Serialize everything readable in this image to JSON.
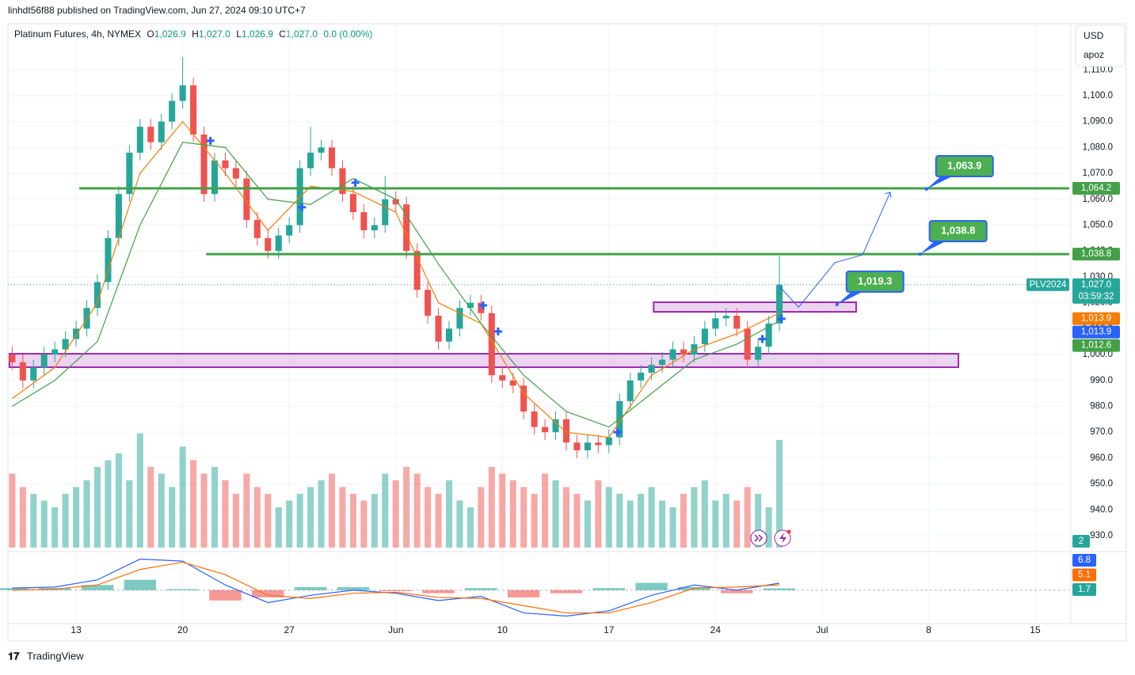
{
  "chart_data": {
    "type": "candlestick",
    "header": "linhdt56f88 published on TradingView.com, Jun 27, 2024 09:10 UTC+7",
    "legend": {
      "symbol": "Platinum Futures, 4h, NYMEX",
      "o_key": "O",
      "o": "1,026.9",
      "h_key": "H",
      "h": "1,027.0",
      "l_key": "L",
      "l": "1,026.9",
      "c_key": "C",
      "c": "1,027.0",
      "change": "0.0 (0.00%)"
    },
    "currency_menu": [
      "USD",
      "apoz"
    ],
    "brand": "TradingView",
    "xlim": [
      -0.4,
      99.2
    ],
    "xticks": [
      {
        "value": 6,
        "label": "13"
      },
      {
        "value": 16,
        "label": "20"
      },
      {
        "value": 26,
        "label": "27"
      },
      {
        "value": 36,
        "label": "Jun"
      },
      {
        "value": 46,
        "label": "10"
      },
      {
        "value": 56,
        "label": "17"
      },
      {
        "value": 66,
        "label": "24"
      },
      {
        "value": 76,
        "label": "Jul"
      },
      {
        "value": 86,
        "label": "8"
      },
      {
        "value": 96,
        "label": "15"
      }
    ],
    "ylim": [
      924.5,
      1127.8
    ],
    "yticks": [
      {
        "value": 930,
        "label": "930.0"
      },
      {
        "value": 940,
        "label": "940.0"
      },
      {
        "value": 950,
        "label": "950.0"
      },
      {
        "value": 960,
        "label": "960.0"
      },
      {
        "value": 970,
        "label": "970.0"
      },
      {
        "value": 980,
        "label": "980.0"
      },
      {
        "value": 990,
        "label": "990.0"
      },
      {
        "value": 1000,
        "label": "1,000.0"
      },
      {
        "value": 1010,
        "label": "1,010.0"
      },
      {
        "value": 1020,
        "label": "1,020.0"
      },
      {
        "value": 1030,
        "label": "1,030.0"
      },
      {
        "value": 1040,
        "label": "1,040.0"
      },
      {
        "value": 1050,
        "label": "1,050.0"
      },
      {
        "value": 1060,
        "label": "1,060.0"
      },
      {
        "value": 1070,
        "label": "1,070.0"
      },
      {
        "value": 1080,
        "label": "1,080.0"
      },
      {
        "value": 1090,
        "label": "1,090.0"
      },
      {
        "value": 1100,
        "label": "1,100.0"
      },
      {
        "value": 1110,
        "label": "1,110.0"
      }
    ],
    "grid": true,
    "up_color": "#26a69a",
    "down_color": "#ef5350",
    "candles": [
      [
        1000,
        1003,
        994,
        997
      ],
      [
        997,
        1000,
        987,
        990
      ],
      [
        990,
        998,
        987,
        995
      ],
      [
        995,
        1003,
        992,
        1000
      ],
      [
        1000,
        1005,
        997,
        1002
      ],
      [
        1002,
        1009,
        999,
        1006
      ],
      [
        1006,
        1013,
        1003,
        1010
      ],
      [
        1010,
        1021,
        1007,
        1018
      ],
      [
        1018,
        1031,
        1015,
        1028
      ],
      [
        1028,
        1048,
        1025,
        1045
      ],
      [
        1045,
        1065,
        1042,
        1062
      ],
      [
        1062,
        1081,
        1059,
        1078
      ],
      [
        1078,
        1091,
        1075,
        1088
      ],
      [
        1088,
        1091,
        1079,
        1082
      ],
      [
        1082,
        1093,
        1079,
        1090
      ],
      [
        1090,
        1101,
        1087,
        1098
      ],
      [
        1098,
        1115,
        1095,
        1104
      ],
      [
        1104,
        1107,
        1082,
        1085
      ],
      [
        1085,
        1088,
        1059,
        1062
      ],
      [
        1062,
        1078,
        1059,
        1075
      ],
      [
        1075,
        1078,
        1069,
        1072
      ],
      [
        1072,
        1075,
        1065,
        1068
      ],
      [
        1068,
        1071,
        1049,
        1052
      ],
      [
        1052,
        1055,
        1042,
        1045
      ],
      [
        1045,
        1048,
        1037,
        1040
      ],
      [
        1040,
        1049,
        1037,
        1046
      ],
      [
        1046,
        1053,
        1043,
        1050
      ],
      [
        1050,
        1075,
        1047,
        1072
      ],
      [
        1072,
        1088,
        1069,
        1078
      ],
      [
        1078,
        1083,
        1075,
        1080
      ],
      [
        1080,
        1083,
        1069,
        1072
      ],
      [
        1072,
        1075,
        1059,
        1062
      ],
      [
        1062,
        1065,
        1052,
        1055
      ],
      [
        1055,
        1058,
        1045,
        1048
      ],
      [
        1048,
        1053,
        1045,
        1050
      ],
      [
        1050,
        1069,
        1047,
        1060
      ],
      [
        1060,
        1063,
        1055,
        1058
      ],
      [
        1058,
        1061,
        1037,
        1040
      ],
      [
        1040,
        1043,
        1022,
        1025
      ],
      [
        1025,
        1028,
        1012,
        1015
      ],
      [
        1015,
        1018,
        1002,
        1005
      ],
      [
        1005,
        1013,
        1002,
        1010
      ],
      [
        1010,
        1021,
        1007,
        1018
      ],
      [
        1018,
        1023,
        1015,
        1020
      ],
      [
        1020,
        1023,
        1013,
        1016
      ],
      [
        1016,
        1019,
        989,
        992
      ],
      [
        992,
        995,
        987,
        990
      ],
      [
        990,
        993,
        985,
        988
      ],
      [
        988,
        991,
        975,
        978
      ],
      [
        978,
        981,
        969,
        972
      ],
      [
        972,
        975,
        967,
        970
      ],
      [
        970,
        978,
        967,
        975
      ],
      [
        975,
        978,
        963,
        966
      ],
      [
        966,
        969,
        960,
        963
      ],
      [
        963,
        969,
        960,
        966
      ],
      [
        966,
        969,
        962,
        965
      ],
      [
        965,
        971,
        962,
        968
      ],
      [
        968,
        985,
        965,
        982
      ],
      [
        982,
        993,
        979,
        990
      ],
      [
        990,
        996,
        987,
        993
      ],
      [
        993,
        999,
        990,
        996
      ],
      [
        996,
        1001,
        993,
        998
      ],
      [
        998,
        1005,
        995,
        1002
      ],
      [
        1002,
        1005,
        997,
        1000
      ],
      [
        1000,
        1007,
        997,
        1004
      ],
      [
        1004,
        1013,
        1001,
        1010
      ],
      [
        1010,
        1017,
        1007,
        1014
      ],
      [
        1014,
        1018,
        1011,
        1015
      ],
      [
        1015,
        1018,
        1007,
        1010
      ],
      [
        1010,
        1013,
        995,
        998
      ],
      [
        998,
        1006,
        995,
        1003
      ],
      [
        1003,
        1015,
        1000,
        1012
      ],
      [
        1012,
        1038,
        1009,
        1027
      ]
    ],
    "volume": {
      "ylim": [
        0,
        100
      ],
      "values": [
        55,
        45,
        40,
        35,
        30,
        40,
        45,
        50,
        60,
        65,
        70,
        50,
        85,
        60,
        55,
        45,
        75,
        65,
        55,
        60,
        50,
        40,
        55,
        45,
        40,
        30,
        35,
        40,
        45,
        50,
        55,
        45,
        40,
        35,
        40,
        55,
        50,
        60,
        55,
        45,
        40,
        50,
        35,
        30,
        45,
        60,
        55,
        50,
        45,
        40,
        55,
        50,
        45,
        40,
        35,
        50,
        45,
        40,
        35,
        40,
        45,
        35,
        30,
        40,
        45,
        50,
        35,
        40,
        35,
        45,
        40,
        30,
        80
      ],
      "tag": "2"
    },
    "moving_averages": {
      "x": [
        0,
        4,
        8,
        12,
        16,
        20,
        24,
        28,
        32,
        36,
        40,
        44,
        48,
        52,
        56,
        60,
        64,
        68,
        72
      ],
      "series": [
        {
          "color": "#f57c00",
          "values": [
            983,
            995,
            1020,
            1070,
            1090,
            1070,
            1048,
            1065,
            1063,
            1055,
            1020,
            1012,
            985,
            970,
            968,
            992,
            1002,
            1008,
            1016
          ]
        },
        {
          "color": "#43a047",
          "values": [
            980,
            990,
            1005,
            1050,
            1082,
            1080,
            1060,
            1058,
            1068,
            1060,
            1035,
            1012,
            992,
            978,
            972,
            985,
            998,
            1004,
            1013
          ]
        }
      ]
    },
    "macd": {
      "ylim": [
        -30,
        35
      ],
      "x": [
        0,
        4,
        8,
        12,
        16,
        20,
        24,
        28,
        32,
        36,
        40,
        44,
        48,
        52,
        56,
        60,
        64,
        68,
        72
      ],
      "macd": {
        "color": "#2962ff",
        "values": [
          2,
          3,
          10,
          30,
          28,
          5,
          -12,
          -5,
          0,
          -3,
          -10,
          -6,
          -22,
          -25,
          -20,
          -5,
          5,
          0,
          6.8
        ]
      },
      "signal": {
        "color": "#ff6d00",
        "values": [
          0,
          1,
          5,
          20,
          27,
          15,
          -5,
          -8,
          -3,
          -2,
          -7,
          -8,
          -15,
          -22,
          -22,
          -12,
          2,
          3,
          5.1
        ]
      },
      "histogram": [
        2,
        2,
        5,
        10,
        1,
        -10,
        -7,
        3,
        3,
        -1,
        -3,
        2,
        -7,
        -3,
        2,
        7,
        3,
        -3,
        1.7
      ],
      "tags": [
        {
          "value": 6.8,
          "color": "#2962ff"
        },
        {
          "value": 5.1,
          "color": "#ff6d00"
        },
        {
          "value": 1.7,
          "color": "#26a69a"
        }
      ]
    },
    "levels": [
      {
        "value": 1064.2,
        "start": 6.3
      },
      {
        "value": 1038.8,
        "start": 18.2
      }
    ],
    "zones": [
      {
        "x0": 60.2,
        "x1": 79.2,
        "low": 1016.5,
        "high": 1020.2
      },
      {
        "x0": -0.26,
        "x1": 88.8,
        "low": 995.1,
        "high": 1000.3
      }
    ],
    "callouts": [
      {
        "x": 85.8,
        "value": 1063.9,
        "label": "1,063.9"
      },
      {
        "x": 85.2,
        "value": 1038.8,
        "label": "1,038.8"
      },
      {
        "x": 77.4,
        "value": 1019.3,
        "label": "1,019.3"
      }
    ],
    "projection": {
      "x": [
        72,
        73.8,
        77.2,
        79.8,
        82.4
      ],
      "values": [
        1026.3,
        1018.3,
        1035.5,
        1038.5,
        1062.7
      ]
    },
    "signals": {
      "x": [
        18.6,
        27.2,
        32.2,
        44.2,
        45.6,
        56.8,
        70.4,
        72.2
      ],
      "values": [
        1082.6,
        1056.9,
        1066.4,
        1019,
        1008.9,
        970,
        1006,
        1013.8
      ]
    },
    "last_price": {
      "value": 1027.0,
      "label": "1,027.0",
      "countdown": "03:59:32",
      "symbol": "PLV2024"
    },
    "price_tags": [
      {
        "value": 1064.2,
        "label": "1,064.2",
        "color": "#43a047"
      },
      {
        "value": 1038.8,
        "label": "1,038.8",
        "color": "#43a047"
      },
      {
        "value": 1013.9,
        "label": "1,013.9",
        "color": "#f57c00"
      },
      {
        "value": 1013.9,
        "label": "1,013.9",
        "color": "#2962ff"
      },
      {
        "value": 1012.6,
        "label": "1,012.6",
        "color": "#43a047"
      }
    ]
  }
}
